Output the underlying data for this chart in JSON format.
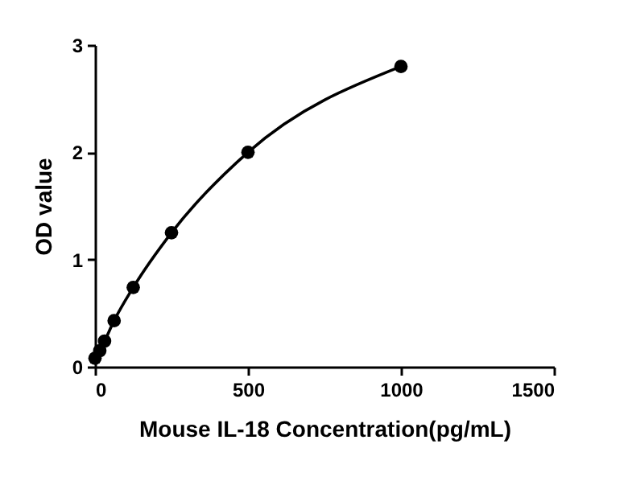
{
  "chart_data": {
    "type": "line",
    "xlabel": "Mouse IL-18 Concentration(pg/mL)",
    "ylabel": "OD value",
    "x": [
      0,
      15.6,
      31.25,
      62.5,
      125,
      250,
      500,
      1000
    ],
    "series": [
      {
        "color": "#000000",
        "values": [
          0.08,
          0.15,
          0.24,
          0.43,
          0.74,
          1.25,
          2.0,
          2.8
        ]
      }
    ],
    "xlim": [
      0,
      1500
    ],
    "xticks": [
      0,
      500,
      1000,
      1500
    ],
    "ylim": [
      0,
      3
    ],
    "yticks": [
      0,
      1,
      2,
      3
    ],
    "grid": false,
    "marker": "circle",
    "line_style": "solid"
  }
}
